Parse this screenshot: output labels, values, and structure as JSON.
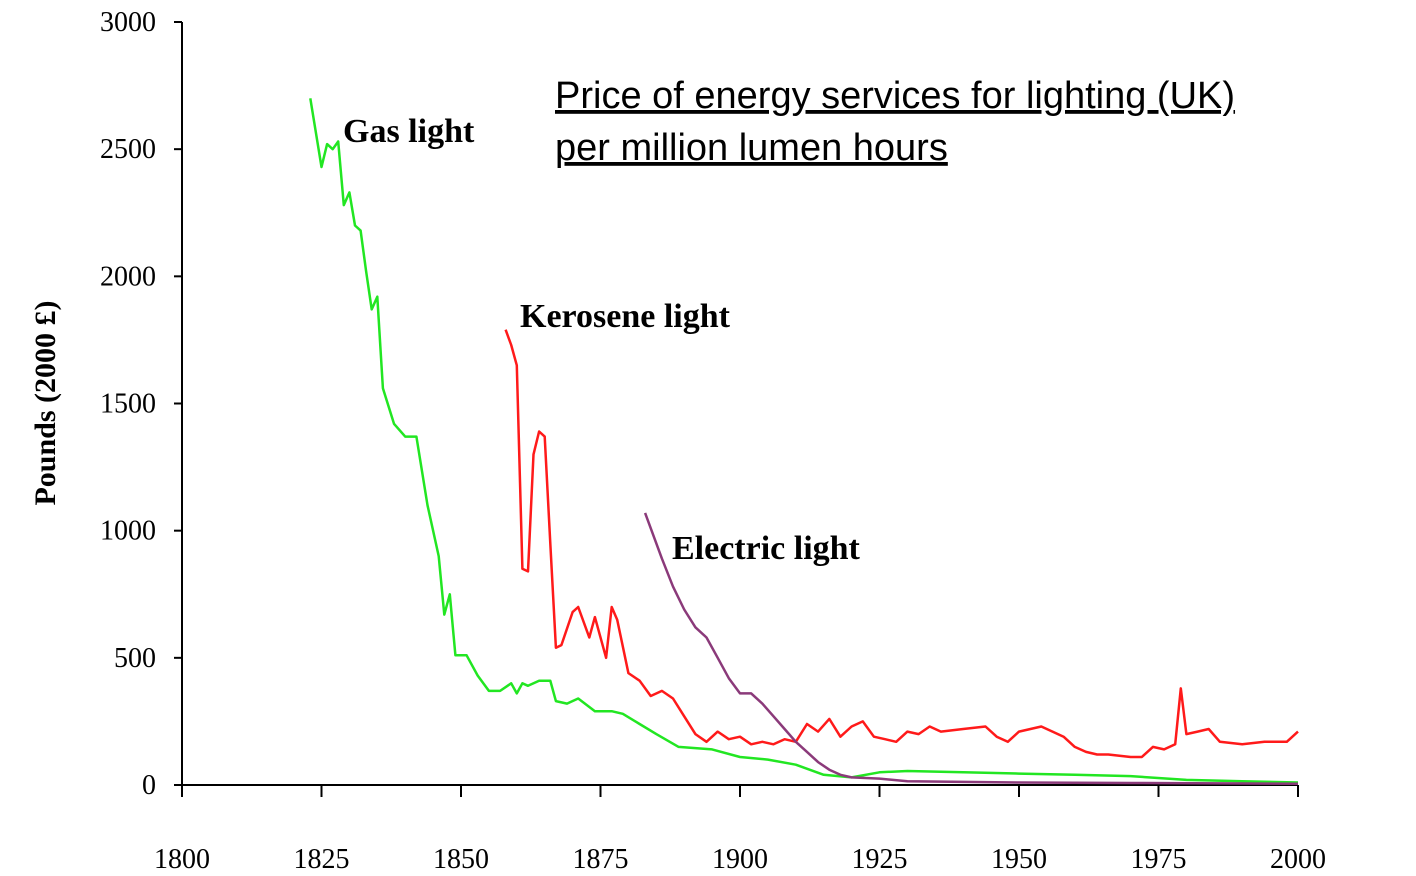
{
  "chart_data": {
    "type": "line",
    "title": "Price of energy services for lighting (UK)",
    "subtitle": "per million lumen hours",
    "y_label": "Pounds (2000 £)",
    "xlim": [
      1800,
      2000
    ],
    "xticks": [
      1800,
      1825,
      1850,
      1875,
      1900,
      1925,
      1950,
      1975,
      2000
    ],
    "ylim": [
      0,
      3000
    ],
    "yticks": [
      0,
      500,
      1000,
      1500,
      2000,
      2500,
      3000
    ],
    "series": [
      {
        "name": "Gas light",
        "color": "#22e622",
        "x": [
          1823,
          1825,
          1826,
          1827,
          1828,
          1829,
          1830,
          1831,
          1832,
          1833,
          1834,
          1835,
          1836,
          1838,
          1840,
          1842,
          1844,
          1846,
          1847,
          1848,
          1849,
          1851,
          1853,
          1855,
          1857,
          1859,
          1860,
          1861,
          1862,
          1864,
          1866,
          1867,
          1869,
          1871,
          1874,
          1877,
          1879,
          1882,
          1885,
          1889,
          1895,
          1900,
          1905,
          1910,
          1915,
          1920,
          1925,
          1930,
          1940,
          1950,
          1960,
          1970,
          1980,
          1990,
          2000
        ],
        "values": [
          2700,
          2430,
          2520,
          2500,
          2530,
          2280,
          2330,
          2200,
          2180,
          2020,
          1870,
          1920,
          1560,
          1420,
          1370,
          1370,
          1100,
          900,
          670,
          750,
          510,
          510,
          430,
          370,
          370,
          400,
          360,
          400,
          390,
          410,
          410,
          330,
          320,
          340,
          290,
          290,
          280,
          240,
          200,
          150,
          140,
          110,
          100,
          80,
          40,
          30,
          50,
          55,
          50,
          45,
          40,
          35,
          20,
          15,
          10
        ]
      },
      {
        "name": "Kerosene light",
        "color": "#ff1a1a",
        "x": [
          1858,
          1859,
          1860,
          1861,
          1862,
          1863,
          1864,
          1865,
          1866,
          1867,
          1868,
          1870,
          1871,
          1873,
          1874,
          1876,
          1877,
          1878,
          1880,
          1882,
          1884,
          1886,
          1888,
          1890,
          1892,
          1894,
          1896,
          1898,
          1900,
          1902,
          1904,
          1906,
          1908,
          1910,
          1912,
          1914,
          1916,
          1918,
          1920,
          1922,
          1924,
          1926,
          1928,
          1930,
          1932,
          1934,
          1936,
          1940,
          1944,
          1946,
          1948,
          1950,
          1954,
          1956,
          1958,
          1960,
          1962,
          1964,
          1966,
          1970,
          1972,
          1974,
          1976,
          1978,
          1979,
          1980,
          1982,
          1984,
          1986,
          1990,
          1994,
          1998,
          2000
        ],
        "values": [
          1790,
          1730,
          1650,
          850,
          840,
          1300,
          1390,
          1370,
          950,
          540,
          550,
          680,
          700,
          580,
          660,
          500,
          700,
          650,
          440,
          410,
          350,
          370,
          340,
          270,
          200,
          170,
          210,
          180,
          190,
          160,
          170,
          160,
          180,
          170,
          240,
          210,
          260,
          190,
          230,
          250,
          190,
          180,
          170,
          210,
          200,
          230,
          210,
          220,
          230,
          190,
          170,
          210,
          230,
          210,
          190,
          150,
          130,
          120,
          120,
          110,
          110,
          150,
          140,
          160,
          380,
          200,
          210,
          220,
          170,
          160,
          170,
          170,
          210
        ]
      },
      {
        "name": "Electric light",
        "color": "#8b3a7a",
        "x": [
          1883,
          1886,
          1888,
          1890,
          1892,
          1894,
          1896,
          1898,
          1900,
          1902,
          1904,
          1906,
          1908,
          1910,
          1912,
          1914,
          1916,
          1918,
          1920,
          1925,
          1930,
          1950,
          1970,
          2000
        ],
        "values": [
          1070,
          890,
          780,
          690,
          620,
          580,
          500,
          420,
          360,
          360,
          320,
          270,
          220,
          170,
          130,
          90,
          60,
          40,
          30,
          25,
          15,
          10,
          8,
          5
        ]
      }
    ]
  }
}
